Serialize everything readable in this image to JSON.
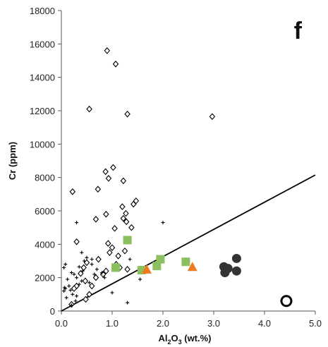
{
  "chart_data": {
    "type": "scatter",
    "panel_label": "f",
    "xlabel": {
      "pre": "Al",
      "sub1": "2",
      "mid": "O",
      "sub2": "3",
      "post": " (wt.%)"
    },
    "ylabel": "Cr (ppm)",
    "xlim": [
      0,
      5
    ],
    "ylim": [
      0,
      18000
    ],
    "xticks": [
      0,
      1,
      2,
      3,
      4,
      5
    ],
    "xtick_labels": [
      "0.0",
      "1.0",
      "2.0",
      "3.0",
      "4.0",
      "5.0"
    ],
    "yticks": [
      0,
      2000,
      4000,
      6000,
      8000,
      10000,
      12000,
      14000,
      16000,
      18000
    ],
    "ytick_labels": [
      "0",
      "2000",
      "4000",
      "6000",
      "8000",
      "10000",
      "12000",
      "14000",
      "16000",
      "18000"
    ],
    "grid": false,
    "reference_line": {
      "x": [
        0,
        5
      ],
      "y": [
        0,
        8150
      ]
    },
    "series": [
      {
        "marker": "diamond-open",
        "color": "#000000",
        "points": [
          [
            0.9,
            15600
          ],
          [
            1.07,
            14800
          ],
          [
            0.55,
            12100
          ],
          [
            1.3,
            11800
          ],
          [
            2.97,
            11650
          ],
          [
            1.02,
            8600
          ],
          [
            0.87,
            8350
          ],
          [
            0.72,
            7300
          ],
          [
            0.93,
            7950
          ],
          [
            1.22,
            7800
          ],
          [
            0.22,
            7150
          ],
          [
            1.47,
            6600
          ],
          [
            1.42,
            6400
          ],
          [
            1.2,
            6250
          ],
          [
            1.27,
            5850
          ],
          [
            1.22,
            5550
          ],
          [
            1.28,
            5350
          ],
          [
            1.38,
            5000
          ],
          [
            1.05,
            4950
          ],
          [
            0.88,
            5800
          ],
          [
            0.68,
            5500
          ],
          [
            0.3,
            4150
          ],
          [
            0.92,
            4050
          ],
          [
            1.0,
            3800
          ],
          [
            0.95,
            3500
          ],
          [
            1.25,
            3600
          ],
          [
            1.12,
            3300
          ],
          [
            0.73,
            3100
          ],
          [
            0.5,
            2900
          ],
          [
            0.44,
            2600
          ],
          [
            0.38,
            2250
          ],
          [
            0.47,
            1800
          ],
          [
            0.6,
            1500
          ],
          [
            0.68,
            2000
          ],
          [
            0.3,
            1500
          ],
          [
            0.88,
            2400
          ],
          [
            0.82,
            2200
          ],
          [
            0.25,
            1350
          ],
          [
            0.55,
            1000
          ],
          [
            0.48,
            700
          ],
          [
            0.2,
            400
          ],
          [
            1.08,
            2800
          ],
          [
            1.3,
            2500
          ],
          [
            1.15,
            2600
          ]
        ]
      },
      {
        "marker": "plus",
        "color": "#000000",
        "points": [
          [
            0.3,
            5300
          ],
          [
            0.4,
            3500
          ],
          [
            0.5,
            3200
          ],
          [
            0.45,
            3000
          ],
          [
            0.6,
            2800
          ],
          [
            0.35,
            2650
          ],
          [
            0.2,
            2300
          ],
          [
            0.08,
            2800
          ],
          [
            0.05,
            2600
          ],
          [
            0.25,
            2200
          ],
          [
            0.3,
            2000
          ],
          [
            0.12,
            1900
          ],
          [
            0.4,
            1800
          ],
          [
            0.55,
            1700
          ],
          [
            0.15,
            1500
          ],
          [
            0.08,
            1350
          ],
          [
            0.05,
            1200
          ],
          [
            0.22,
            1000
          ],
          [
            0.3,
            900
          ],
          [
            0.1,
            800
          ],
          [
            0.28,
            600
          ],
          [
            0.2,
            350
          ],
          [
            0.7,
            2500
          ],
          [
            0.8,
            2300
          ],
          [
            0.65,
            2200
          ],
          [
            0.85,
            2000
          ],
          [
            1.0,
            1100
          ],
          [
            1.3,
            500
          ],
          [
            1.35,
            3100
          ],
          [
            2.0,
            5300
          ],
          [
            1.55,
            1900
          ],
          [
            0.42,
            2400
          ],
          [
            0.35,
            1600
          ],
          [
            0.6,
            3100
          ],
          [
            0.18,
            1250
          ],
          [
            0.06,
            1400
          ]
        ]
      },
      {
        "marker": "square-filled",
        "color": "#8cbf5e",
        "points": [
          [
            1.3,
            4250
          ],
          [
            1.07,
            2600
          ],
          [
            1.58,
            2450
          ],
          [
            1.88,
            2700
          ],
          [
            1.95,
            3100
          ],
          [
            2.45,
            2950
          ]
        ]
      },
      {
        "marker": "triangle-filled",
        "color": "#f07a1e",
        "points": [
          [
            1.68,
            2500
          ],
          [
            2.58,
            2650
          ]
        ]
      },
      {
        "marker": "circle-filled",
        "color": "#333333",
        "points": [
          [
            3.2,
            2650
          ],
          [
            3.22,
            2300
          ],
          [
            3.28,
            2550
          ],
          [
            3.45,
            3150
          ],
          [
            3.45,
            2400
          ]
        ]
      },
      {
        "marker": "circle-open",
        "color": "#000000",
        "points": [
          [
            4.43,
            600
          ]
        ]
      }
    ]
  }
}
